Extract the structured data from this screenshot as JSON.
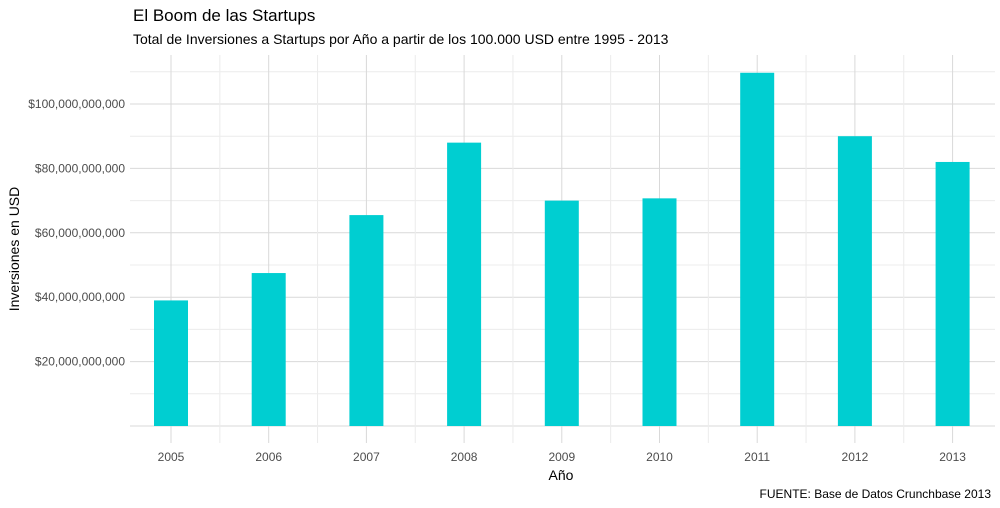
{
  "title": "El Boom de las Startups",
  "subtitle": "Total de Inversiones a Startups por Año a partir de los 100.000 USD entre 1995 - 2013",
  "caption": "FUENTE: Base de Datos Crunchbase 2013",
  "colors": {
    "bar": "#00CED1",
    "grid_major": "#d9d9d9",
    "grid_minor": "#ececec"
  },
  "chart_data": {
    "type": "bar",
    "categories": [
      "2005",
      "2006",
      "2007",
      "2008",
      "2009",
      "2010",
      "2011",
      "2012",
      "2013"
    ],
    "values": [
      39000000000,
      47500000000,
      65500000000,
      88000000000,
      70000000000,
      70700000000,
      109700000000,
      90000000000,
      82000000000
    ],
    "xlabel": "Año",
    "ylabel": "Inversiones en USD",
    "yticks": [
      20000000000,
      40000000000,
      60000000000,
      80000000000,
      100000000000
    ],
    "ytick_labels": [
      "$20,000,000,000",
      "$40,000,000,000",
      "$60,000,000,000",
      "$80,000,000,000",
      "$100,000,000,000"
    ],
    "ylim": [
      0,
      112000000000
    ],
    "grid": true,
    "legend": "none"
  }
}
